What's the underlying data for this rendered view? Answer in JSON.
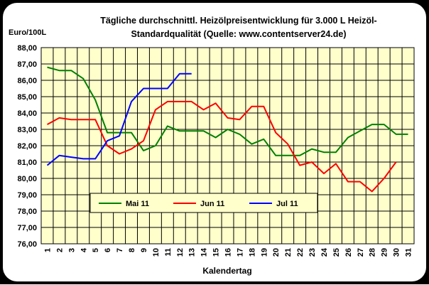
{
  "chart_data": {
    "type": "line",
    "title_line1": "Tägliche durchschnittl. Heizölpreisentwicklung für 3.000 L Heizöl-",
    "title_line2": "Standardqualität (Quelle: www.contentserver24.de)",
    "ylabel": "Euro/100L",
    "xlabel": "Kalendertag",
    "ylim": [
      76,
      88
    ],
    "yticks": [
      "76,00",
      "77,00",
      "78,00",
      "79,00",
      "80,00",
      "81,00",
      "82,00",
      "83,00",
      "84,00",
      "85,00",
      "86,00",
      "87,00",
      "88,00"
    ],
    "xticks": [
      "1",
      "2",
      "3",
      "4",
      "5",
      "6",
      "7",
      "8",
      "9",
      "10",
      "11",
      "12",
      "13",
      "14",
      "15",
      "16",
      "17",
      "18",
      "19",
      "20",
      "21",
      "22",
      "23",
      "24",
      "25",
      "26",
      "27",
      "28",
      "29",
      "30",
      "31"
    ],
    "grid": true,
    "background": "#ffffcc",
    "legend_position": "bottom-center",
    "series": [
      {
        "name": "Mai 11",
        "color": "#008000",
        "x": [
          1,
          2,
          3,
          4,
          5,
          6,
          7,
          8,
          9,
          10,
          11,
          12,
          13,
          14,
          15,
          16,
          17,
          18,
          19,
          20,
          21,
          22,
          23,
          24,
          25,
          26,
          27,
          28,
          29,
          30,
          31
        ],
        "values": [
          86.8,
          86.6,
          86.6,
          86.1,
          84.8,
          82.8,
          82.8,
          82.8,
          81.7,
          82.0,
          83.2,
          82.9,
          82.9,
          82.9,
          82.5,
          83.0,
          82.7,
          82.1,
          82.4,
          81.4,
          81.4,
          81.4,
          81.8,
          81.6,
          81.6,
          82.5,
          82.9,
          83.3,
          83.3,
          82.7,
          82.7
        ]
      },
      {
        "name": "Jun 11",
        "color": "#ff0000",
        "x": [
          1,
          2,
          3,
          4,
          5,
          6,
          7,
          8,
          9,
          10,
          11,
          12,
          13,
          14,
          15,
          16,
          17,
          18,
          19,
          20,
          21,
          22,
          23,
          24,
          25,
          26,
          27,
          28,
          29,
          30
        ],
        "values": [
          83.3,
          83.7,
          83.6,
          83.6,
          83.6,
          82.0,
          81.5,
          81.8,
          82.3,
          84.2,
          84.7,
          84.7,
          84.7,
          84.2,
          84.6,
          83.7,
          83.6,
          84.4,
          84.4,
          82.8,
          82.1,
          80.8,
          81.0,
          80.3,
          80.9,
          79.8,
          79.8,
          79.2,
          80.0,
          81.0
        ]
      },
      {
        "name": "Jul 11",
        "color": "#0000ff",
        "x": [
          1,
          2,
          3,
          4,
          5,
          6,
          7,
          8,
          9,
          10,
          11,
          12,
          13
        ],
        "values": [
          80.8,
          81.4,
          81.3,
          81.2,
          81.2,
          82.3,
          82.6,
          84.7,
          85.5,
          85.5,
          85.5,
          86.4,
          86.4
        ]
      }
    ]
  }
}
